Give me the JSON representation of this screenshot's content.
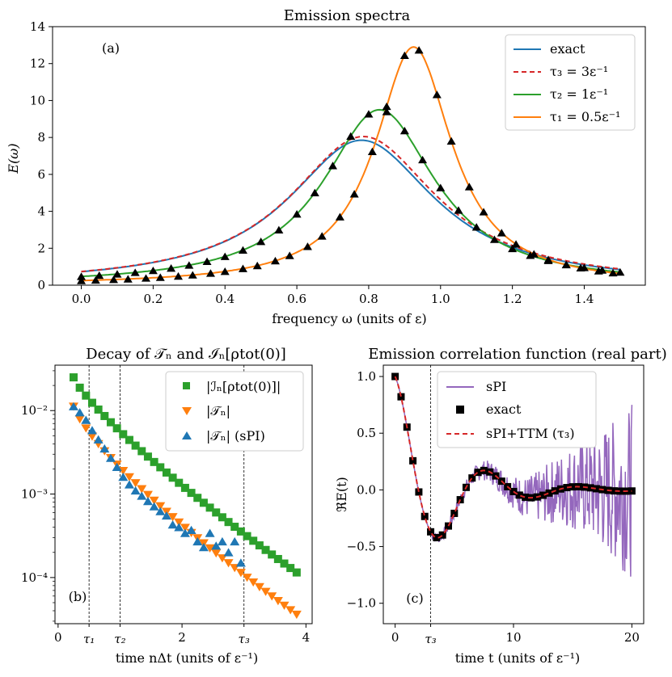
{
  "chart_data": [
    {
      "id": "a",
      "type": "line",
      "title": "Emission spectra",
      "panel_label": "(a)",
      "xlabel": "frequency ω (units of ε)",
      "ylabel": "E(ω)",
      "xlim": [
        -0.08,
        1.57
      ],
      "ylim": [
        0,
        14
      ],
      "xticks": [
        "0.0",
        "0.2",
        "0.4",
        "0.6",
        "0.8",
        "1.0",
        "1.2",
        "1.4"
      ],
      "yticks": [
        "0",
        "2",
        "4",
        "6",
        "8",
        "10",
        "12",
        "14"
      ],
      "legend": [
        "exact",
        "τ₃ = 3ε⁻¹",
        "τ₂ = 1ε⁻¹",
        "τ₁ = 0.5ε⁻¹"
      ],
      "series": [
        {
          "name": "exact",
          "color": "#1f77b4",
          "style": "solid",
          "model": {
            "w0": 0.78,
            "gamma": 0.25,
            "peak": 7.85
          }
        },
        {
          "name": "tau3",
          "color": "#d62728",
          "style": "dashed",
          "model": {
            "w0": 0.785,
            "gamma": 0.25,
            "peak": 8.05
          }
        },
        {
          "name": "tau2",
          "color": "#2ca02c",
          "style": "solid",
          "model": {
            "w0": 0.83,
            "gamma": 0.19,
            "peak": 9.5
          }
        },
        {
          "name": "tau1",
          "color": "#ff7f0e",
          "style": "solid",
          "model": {
            "w0": 0.925,
            "gamma": 0.13,
            "peak": 12.9
          }
        }
      ],
      "markers": {
        "color": "#000000",
        "x_green": [
          0.0,
          0.05,
          0.1,
          0.15,
          0.2,
          0.25,
          0.3,
          0.35,
          0.4,
          0.45,
          0.5,
          0.55,
          0.6,
          0.65,
          0.7,
          0.75,
          0.8,
          0.85,
          0.9,
          0.95,
          1.0,
          1.05,
          1.1,
          1.15,
          1.2,
          1.25,
          1.3,
          1.35,
          1.4,
          1.45,
          1.5
        ],
        "x_orange": [
          0.0,
          0.04,
          0.09,
          0.13,
          0.18,
          0.22,
          0.27,
          0.31,
          0.36,
          0.4,
          0.45,
          0.49,
          0.54,
          0.58,
          0.63,
          0.67,
          0.72,
          0.76,
          0.81,
          0.85,
          0.9,
          0.94,
          0.99,
          1.03,
          1.08,
          1.12,
          1.17,
          1.21,
          1.26,
          1.3,
          1.35,
          1.39,
          1.44,
          1.48
        ]
      }
    },
    {
      "id": "b",
      "type": "scatter",
      "title": "Decay of 𝒯ₙ and ℐₙ[ρtot(0)]",
      "panel_label": "(b)",
      "xlabel": "time nΔt (units of ε⁻¹)",
      "yscale": "log",
      "xlim": [
        -0.05,
        4.1
      ],
      "ylim": [
        2.8e-05,
        0.035
      ],
      "xticks": [
        "0",
        "2",
        "4"
      ],
      "xtick_values": [
        0,
        2,
        4
      ],
      "yticks": [
        "10⁻²",
        "10⁻³",
        "10⁻⁴"
      ],
      "ytick_values": [
        0.01,
        0.001,
        0.0001
      ],
      "vlines": [
        {
          "x": 0.5,
          "label": "τ₁"
        },
        {
          "x": 1.0,
          "label": "τ₂"
        },
        {
          "x": 3.0,
          "label": "τ₃"
        }
      ],
      "legend": [
        "|ℐₙ[ρtot(0)]|",
        "|𝒯ₙ|",
        "|𝒯ₙ| (sPI)"
      ],
      "series": [
        {
          "name": "I_n",
          "marker": "square",
          "color": "#2ca02c",
          "x0": 0.25,
          "dx": 0.1,
          "count": 37,
          "start": 0.025,
          "end": 0.000115
        },
        {
          "name": "T_n",
          "marker": "triangle-down",
          "color": "#ff7f0e",
          "x0": 0.25,
          "dx": 0.1,
          "count": 37,
          "start": 0.0112,
          "end": 3.6e-05
        },
        {
          "name": "T_n sPI",
          "marker": "triangle-up",
          "color": "#1f77b4",
          "x": [
            0.25,
            0.35,
            0.45,
            0.55,
            0.65,
            0.75,
            0.85,
            0.95,
            1.05,
            1.15,
            1.25,
            1.35,
            1.45,
            1.55,
            1.65,
            1.75,
            1.85,
            1.95,
            2.05,
            2.15,
            2.25,
            2.35,
            2.45,
            2.55,
            2.65,
            2.75,
            2.85,
            2.95
          ],
          "y": [
            0.0112,
            0.0095,
            0.0077,
            0.0058,
            0.0045,
            0.0035,
            0.0027,
            0.0021,
            0.0016,
            0.0013,
            0.0011,
            0.00095,
            0.00082,
            0.00071,
            0.00062,
            0.00055,
            0.00043,
            0.0004,
            0.00034,
            0.00037,
            0.00027,
            0.00023,
            0.00034,
            0.00024,
            0.00027,
            0.0002,
            0.00027,
            0.00015
          ]
        }
      ]
    },
    {
      "id": "c",
      "type": "line",
      "title": "Emission correlation function (real part)",
      "panel_label": "(c)",
      "xlabel": "time t (units of ε⁻¹)",
      "ylabel": "ℜE(t)",
      "xlim": [
        -1.0,
        21.0
      ],
      "ylim": [
        -1.18,
        1.1
      ],
      "xticks": [
        "0",
        "10",
        "20"
      ],
      "xtick_values": [
        0,
        10,
        20
      ],
      "yticks": [
        "1.0",
        "0.5",
        "0.0",
        "−0.5",
        "−1.0"
      ],
      "ytick_values": [
        1.0,
        0.5,
        0.0,
        -0.5,
        -1.0
      ],
      "vlines": [
        {
          "x": 3.0,
          "label": "τ₃"
        }
      ],
      "legend": [
        "sPI",
        "exact",
        "sPI+TTM (τ₃)"
      ],
      "series": [
        {
          "name": "sPI",
          "color": "#9467bd",
          "style": "solid",
          "noise_start": 3.0
        },
        {
          "name": "exact",
          "color": "#000000",
          "marker": "square",
          "dx": 0.5
        },
        {
          "name": "sPI+TTM",
          "color": "#d62728",
          "style": "dashed"
        }
      ],
      "model": {
        "decay": 0.23,
        "omega": 0.8
      }
    }
  ]
}
